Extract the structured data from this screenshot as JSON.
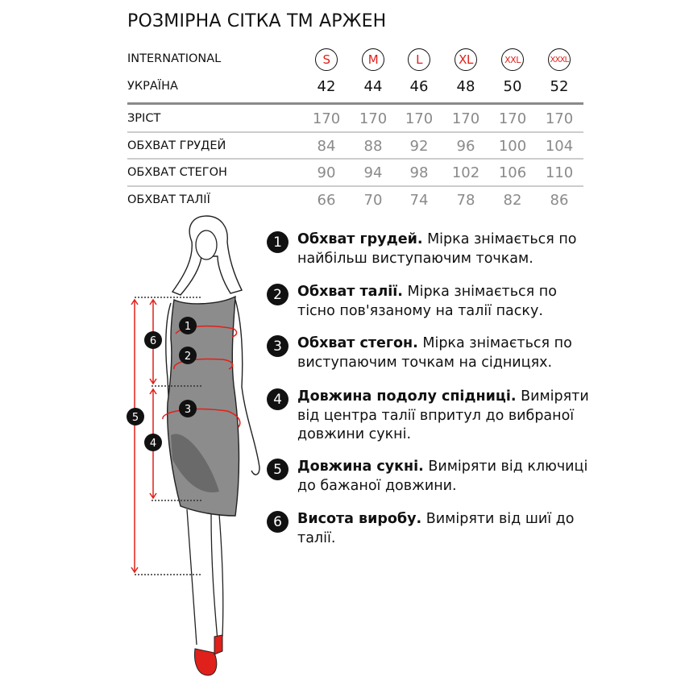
{
  "title": "РОЗМІРНА СІТКА ТМ АРЖЕН",
  "table": {
    "international_label": "INTERNATIONAL",
    "ukraine_label": "УКРАЇНА",
    "sizes": [
      "S",
      "M",
      "L",
      "XL",
      "XXL",
      "XXXL"
    ],
    "ukraine": [
      "42",
      "44",
      "46",
      "48",
      "50",
      "52"
    ],
    "rows": [
      {
        "label": "ЗРІСТ",
        "values": [
          "170",
          "170",
          "170",
          "170",
          "170",
          "170"
        ]
      },
      {
        "label": "ОБХВАТ ГРУДЕЙ",
        "values": [
          "84",
          "88",
          "92",
          "96",
          "100",
          "104"
        ]
      },
      {
        "label": "ОБХВАТ СТЕГОН",
        "values": [
          "90",
          "94",
          "98",
          "102",
          "106",
          "110"
        ]
      },
      {
        "label": "ОБХВАТ ТАЛІЇ",
        "values": [
          "66",
          "70",
          "74",
          "78",
          "82",
          "86"
        ]
      }
    ]
  },
  "instructions": [
    {
      "num": "1",
      "title": "Обхват грудей.",
      "text": " Мірка знімається по найбільш виступаючим точкам."
    },
    {
      "num": "2",
      "title": "Обхват талії.",
      "text": " Мірка знімається по тісно пов'язаному на талії паску."
    },
    {
      "num": "3",
      "title": "Обхват стегон.",
      "text": " Мірка знімається по виступаючим точкам на сідницях."
    },
    {
      "num": "4",
      "title": "Довжина подолу спідниці.",
      "text": " Виміряти від центра талії впритул до вибраної довжини сукні."
    },
    {
      "num": "5",
      "title": "Довжина сукні.",
      "text": " Виміряти від ключиці до бажаної довжини."
    },
    {
      "num": "6",
      "title": "Висота виробу.",
      "text": " Виміряти від шиї до талії."
    }
  ],
  "figure": {
    "markers": [
      "1",
      "2",
      "3",
      "4",
      "5",
      "6"
    ],
    "colors": {
      "accent": "#e0201a",
      "dress": "#8c8c8c",
      "badge": "#111111"
    }
  }
}
